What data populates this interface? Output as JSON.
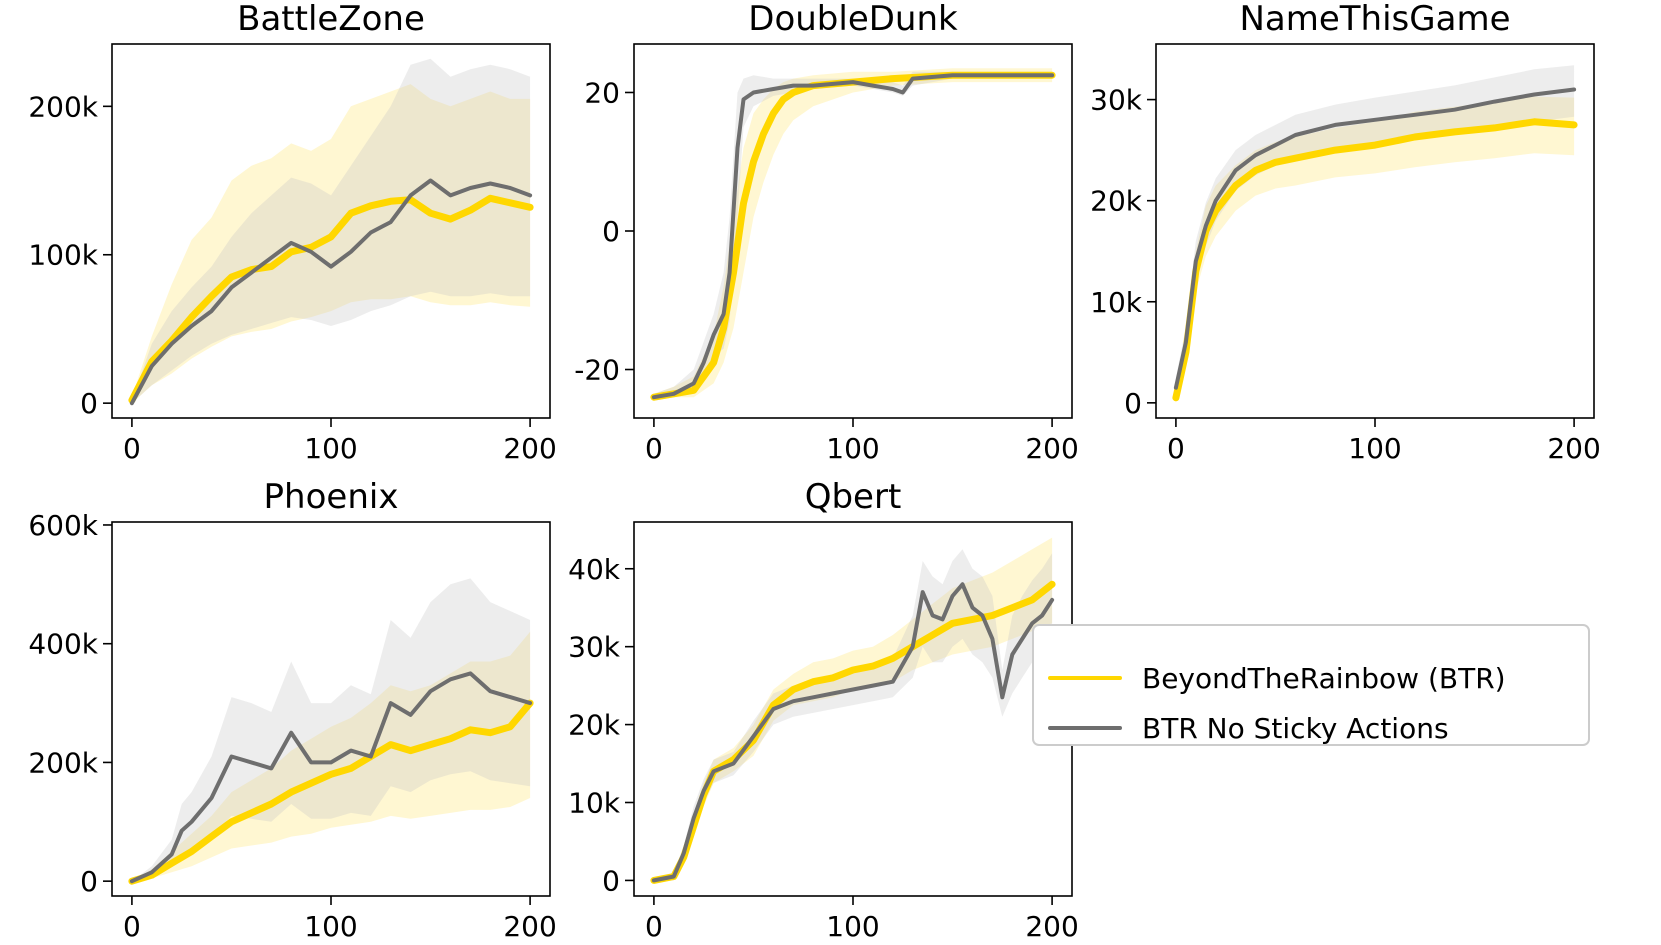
{
  "figure": {
    "colors": {
      "btr": "#FFD700",
      "btr_band": "#FFE45C",
      "nosticky": "#6E6E6E",
      "nosticky_band": "#C8C8C8"
    }
  },
  "legend": {
    "entries": [
      {
        "name": "BeyondTheRainbow (BTR)",
        "color": "#FFD700"
      },
      {
        "name": "BTR No Sticky Actions",
        "color": "#6E6E6E"
      }
    ]
  },
  "chart_data": [
    {
      "type": "line",
      "title": "BattleZone",
      "xlim": [
        -10,
        210
      ],
      "ylim": [
        -10000,
        242000
      ],
      "xticks": [
        0,
        100,
        200
      ],
      "xtick_labels": [
        "0",
        "100",
        "200"
      ],
      "yticks": [
        0,
        100000,
        200000
      ],
      "ytick_labels": [
        "0",
        "100k",
        "200k"
      ],
      "series": [
        {
          "name": "BeyondTheRainbow (BTR)",
          "x": [
            0,
            10,
            20,
            30,
            40,
            50,
            60,
            70,
            80,
            90,
            100,
            110,
            120,
            130,
            140,
            150,
            160,
            170,
            180,
            190,
            200
          ],
          "values": [
            2000,
            28000,
            42000,
            58000,
            72000,
            85000,
            90000,
            92000,
            102000,
            105000,
            112000,
            128000,
            133000,
            136000,
            137000,
            128000,
            124000,
            130000,
            138000,
            135000,
            132000
          ],
          "lower": [
            0,
            12000,
            20000,
            30000,
            38000,
            45000,
            48000,
            50000,
            55000,
            58000,
            62000,
            68000,
            70000,
            70000,
            72000,
            68000,
            66000,
            66000,
            68000,
            66000,
            65000
          ],
          "upper": [
            4000,
            45000,
            80000,
            110000,
            125000,
            150000,
            160000,
            165000,
            175000,
            170000,
            178000,
            200000,
            205000,
            210000,
            215000,
            205000,
            200000,
            205000,
            210000,
            205000,
            205000
          ]
        },
        {
          "name": "BTR No Sticky Actions",
          "x": [
            0,
            10,
            20,
            30,
            40,
            50,
            60,
            70,
            80,
            90,
            100,
            110,
            120,
            130,
            140,
            150,
            160,
            170,
            180,
            190,
            200
          ],
          "values": [
            0,
            25000,
            40000,
            52000,
            62000,
            78000,
            88000,
            98000,
            108000,
            102000,
            92000,
            102000,
            115000,
            122000,
            140000,
            150000,
            140000,
            145000,
            148000,
            145000,
            140000
          ],
          "lower": [
            0,
            12000,
            22000,
            32000,
            40000,
            46000,
            50000,
            54000,
            58000,
            56000,
            52000,
            56000,
            62000,
            66000,
            72000,
            75000,
            72000,
            72000,
            74000,
            72000,
            72000
          ],
          "upper": [
            2000,
            40000,
            62000,
            78000,
            92000,
            112000,
            128000,
            140000,
            152000,
            148000,
            140000,
            160000,
            180000,
            200000,
            228000,
            232000,
            220000,
            225000,
            228000,
            225000,
            220000
          ]
        }
      ]
    },
    {
      "type": "line",
      "title": "DoubleDunk",
      "xlim": [
        -10,
        210
      ],
      "ylim": [
        -27,
        27
      ],
      "xticks": [
        0,
        100,
        200
      ],
      "xtick_labels": [
        "0",
        "100",
        "200"
      ],
      "yticks": [
        -20,
        0,
        20
      ],
      "ytick_labels": [
        "-20",
        "0",
        "20"
      ],
      "series": [
        {
          "name": "BeyondTheRainbow (BTR)",
          "x": [
            0,
            10,
            20,
            25,
            30,
            35,
            40,
            45,
            50,
            55,
            60,
            65,
            70,
            80,
            100,
            120,
            150,
            200
          ],
          "values": [
            -24,
            -23.5,
            -23,
            -21,
            -19,
            -14,
            -6,
            4,
            10,
            14,
            17,
            19,
            20,
            21,
            21.5,
            22,
            22.5,
            22.5
          ],
          "lower": [
            -24.5,
            -24,
            -24,
            -23,
            -22,
            -19,
            -14,
            -6,
            2,
            7,
            11,
            14,
            16,
            18,
            20,
            21,
            21.5,
            21.5
          ],
          "upper": [
            -23.5,
            -22.5,
            -21,
            -18,
            -15,
            -8,
            2,
            12,
            17,
            19,
            20.5,
            21.5,
            22,
            22.5,
            23,
            23,
            23.5,
            23.5
          ]
        },
        {
          "name": "BTR No Sticky Actions",
          "x": [
            0,
            10,
            20,
            25,
            30,
            35,
            38,
            42,
            45,
            50,
            60,
            70,
            80,
            100,
            110,
            120,
            125,
            130,
            150,
            200
          ],
          "values": [
            -24,
            -23.5,
            -22,
            -19,
            -15,
            -12,
            -6,
            12,
            19,
            20,
            20.5,
            21,
            21,
            21.5,
            21,
            20.5,
            20,
            22,
            22.5,
            22.5
          ],
          "lower": [
            -24.5,
            -24,
            -23.5,
            -21,
            -18,
            -17,
            -13,
            2,
            15,
            18,
            19.5,
            20,
            20.5,
            21,
            20.5,
            20,
            19.5,
            21,
            22,
            22
          ],
          "upper": [
            -23.5,
            -22.5,
            -20,
            -16,
            -12,
            -6,
            2,
            20,
            22,
            22.5,
            22,
            22,
            22,
            22,
            21.5,
            21.5,
            21,
            23,
            23,
            23
          ]
        }
      ]
    },
    {
      "type": "line",
      "title": "NameThisGame",
      "xlim": [
        -10,
        210
      ],
      "ylim": [
        -1500,
        35500
      ],
      "xticks": [
        0,
        100,
        200
      ],
      "xtick_labels": [
        "0",
        "100",
        "200"
      ],
      "yticks": [
        0,
        10000,
        20000,
        30000
      ],
      "ytick_labels": [
        "0",
        "10k",
        "20k",
        "30k"
      ],
      "series": [
        {
          "name": "BeyondTheRainbow (BTR)",
          "x": [
            0,
            5,
            10,
            15,
            20,
            30,
            40,
            50,
            60,
            80,
            100,
            120,
            140,
            160,
            180,
            200
          ],
          "values": [
            500,
            5000,
            13000,
            17000,
            19000,
            21500,
            23000,
            23800,
            24200,
            25000,
            25500,
            26300,
            26800,
            27200,
            27800,
            27500
          ],
          "lower": [
            0,
            3500,
            11000,
            14500,
            16500,
            19000,
            20500,
            21200,
            21500,
            22300,
            22700,
            23300,
            23800,
            24200,
            24700,
            24500
          ],
          "upper": [
            1000,
            6500,
            15000,
            19500,
            21500,
            23500,
            25000,
            25800,
            26300,
            27200,
            27800,
            28800,
            29300,
            29800,
            30300,
            30200
          ]
        },
        {
          "name": "BTR No Sticky Actions",
          "x": [
            0,
            5,
            10,
            15,
            20,
            30,
            40,
            50,
            60,
            80,
            100,
            120,
            140,
            160,
            180,
            200
          ],
          "values": [
            1500,
            6000,
            14000,
            17500,
            20000,
            23000,
            24500,
            25500,
            26500,
            27500,
            28000,
            28500,
            29000,
            29800,
            30500,
            31000
          ],
          "lower": [
            500,
            4500,
            12000,
            15500,
            18000,
            21000,
            22500,
            23500,
            24500,
            25300,
            25800,
            26200,
            26700,
            27300,
            27800,
            28300
          ],
          "upper": [
            2500,
            7500,
            16000,
            19800,
            22200,
            25000,
            26500,
            27500,
            28500,
            29500,
            30200,
            30800,
            31400,
            32200,
            33000,
            33400
          ]
        }
      ]
    },
    {
      "type": "line",
      "title": "Phoenix",
      "xlim": [
        -10,
        210
      ],
      "ylim": [
        -25000,
        605000
      ],
      "xticks": [
        0,
        100,
        200
      ],
      "xtick_labels": [
        "0",
        "100",
        "200"
      ],
      "yticks": [
        0,
        200000,
        400000,
        600000
      ],
      "ytick_labels": [
        "0",
        "200k",
        "400k",
        "600k"
      ],
      "series": [
        {
          "name": "BeyondTheRainbow (BTR)",
          "x": [
            0,
            10,
            20,
            30,
            40,
            50,
            60,
            70,
            80,
            90,
            100,
            110,
            120,
            130,
            140,
            150,
            160,
            170,
            180,
            190,
            200
          ],
          "values": [
            0,
            10000,
            30000,
            50000,
            75000,
            100000,
            115000,
            130000,
            150000,
            165000,
            180000,
            190000,
            210000,
            230000,
            220000,
            230000,
            240000,
            255000,
            250000,
            260000,
            300000
          ],
          "lower": [
            0,
            5000,
            15000,
            25000,
            40000,
            55000,
            60000,
            65000,
            75000,
            80000,
            90000,
            95000,
            100000,
            110000,
            105000,
            110000,
            115000,
            120000,
            120000,
            125000,
            140000
          ],
          "upper": [
            0,
            20000,
            50000,
            80000,
            110000,
            150000,
            170000,
            190000,
            220000,
            240000,
            260000,
            275000,
            300000,
            330000,
            320000,
            330000,
            350000,
            370000,
            370000,
            380000,
            420000
          ]
        },
        {
          "name": "BTR No Sticky Actions",
          "x": [
            0,
            10,
            20,
            25,
            30,
            40,
            50,
            60,
            70,
            80,
            90,
            100,
            110,
            120,
            130,
            140,
            150,
            160,
            170,
            180,
            190,
            200
          ],
          "values": [
            0,
            15000,
            45000,
            85000,
            100000,
            140000,
            210000,
            200000,
            190000,
            250000,
            200000,
            200000,
            220000,
            210000,
            300000,
            280000,
            320000,
            340000,
            350000,
            320000,
            310000,
            300000
          ],
          "lower": [
            0,
            8000,
            25000,
            45000,
            55000,
            75000,
            110000,
            105000,
            100000,
            130000,
            105000,
            105000,
            115000,
            110000,
            160000,
            150000,
            170000,
            180000,
            185000,
            170000,
            165000,
            160000
          ],
          "upper": [
            0,
            25000,
            70000,
            130000,
            150000,
            210000,
            310000,
            300000,
            285000,
            370000,
            300000,
            300000,
            330000,
            315000,
            440000,
            410000,
            470000,
            500000,
            510000,
            470000,
            455000,
            440000
          ]
        }
      ]
    },
    {
      "type": "line",
      "title": "Qbert",
      "xlim": [
        -10,
        210
      ],
      "ylim": [
        -2000,
        46000
      ],
      "xticks": [
        0,
        100,
        200
      ],
      "xtick_labels": [
        "0",
        "100",
        "200"
      ],
      "yticks": [
        0,
        10000,
        20000,
        30000,
        40000
      ],
      "ytick_labels": [
        "0",
        "10k",
        "20k",
        "30k",
        "40k"
      ],
      "series": [
        {
          "name": "BeyondTheRainbow (BTR)",
          "x": [
            0,
            10,
            15,
            20,
            25,
            30,
            40,
            50,
            60,
            70,
            80,
            90,
            100,
            110,
            120,
            130,
            140,
            150,
            160,
            170,
            180,
            190,
            200
          ],
          "values": [
            0,
            500,
            3000,
            7000,
            11000,
            14000,
            15500,
            18000,
            22500,
            24500,
            25500,
            26000,
            27000,
            27500,
            28500,
            30000,
            31500,
            33000,
            33500,
            34000,
            35000,
            36000,
            38000
          ],
          "lower": [
            0,
            0,
            2000,
            5500,
            9500,
            12500,
            14000,
            16000,
            20500,
            22500,
            23000,
            23500,
            24500,
            25000,
            25500,
            27000,
            28000,
            29000,
            29500,
            30000,
            31000,
            32000,
            33000
          ],
          "upper": [
            0,
            1000,
            4500,
            8500,
            12500,
            15500,
            17000,
            20000,
            24500,
            26500,
            28000,
            28500,
            29500,
            30000,
            31500,
            33500,
            35500,
            37500,
            38500,
            39500,
            41000,
            42500,
            44000
          ]
        },
        {
          "name": "BTR No Sticky Actions",
          "x": [
            0,
            10,
            15,
            20,
            25,
            30,
            40,
            50,
            60,
            70,
            80,
            90,
            100,
            110,
            120,
            130,
            135,
            140,
            145,
            150,
            155,
            160,
            165,
            170,
            175,
            180,
            185,
            190,
            195,
            200
          ],
          "values": [
            0,
            500,
            3500,
            8000,
            11500,
            14000,
            15000,
            18500,
            22000,
            23000,
            23500,
            24000,
            24500,
            25000,
            25500,
            30000,
            37000,
            34000,
            33500,
            36500,
            38000,
            35000,
            34000,
            31000,
            23500,
            29000,
            31000,
            33000,
            34000,
            36000
          ],
          "lower": [
            0,
            0,
            2500,
            6500,
            10000,
            12500,
            13500,
            16500,
            20000,
            21000,
            21500,
            22000,
            22500,
            23000,
            23500,
            26000,
            30000,
            28000,
            28000,
            30000,
            31000,
            29000,
            28000,
            26000,
            21000,
            24000,
            26000,
            28000,
            29000,
            30000
          ],
          "upper": [
            0,
            1000,
            4500,
            9500,
            13000,
            15500,
            16500,
            20500,
            24000,
            25000,
            25500,
            26000,
            27000,
            27500,
            28500,
            34000,
            41000,
            39000,
            38000,
            41000,
            42500,
            40000,
            39000,
            36500,
            27000,
            34000,
            36500,
            38500,
            40000,
            42000
          ]
        }
      ]
    }
  ]
}
